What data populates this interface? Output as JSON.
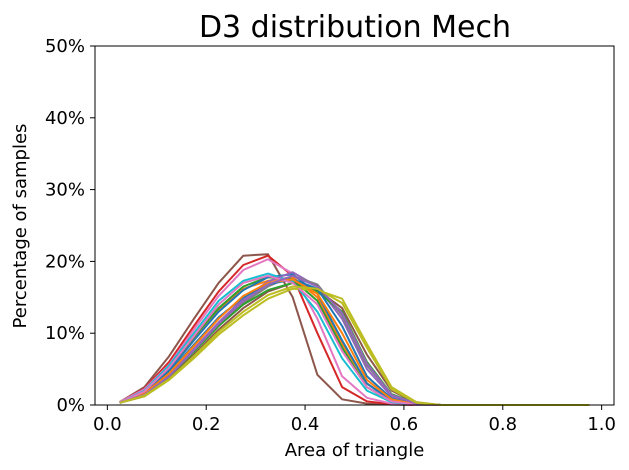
{
  "chart_data": {
    "type": "line",
    "title": "D3 distribution Mech",
    "xlabel": "Area of triangle",
    "ylabel": "Percentage of samples",
    "xlim": [
      -0.025,
      1.025
    ],
    "ylim": [
      0,
      50
    ],
    "xticks": [
      0.0,
      0.2,
      0.4,
      0.6,
      0.8,
      1.0
    ],
    "xtick_labels": [
      "0.0",
      "0.2",
      "0.4",
      "0.6",
      "0.8",
      "1.0"
    ],
    "yticks": [
      0,
      10,
      20,
      30,
      40,
      50
    ],
    "ytick_labels": [
      "0%",
      "10%",
      "20%",
      "30%",
      "40%",
      "50%"
    ],
    "grid": false,
    "x": [
      0.025,
      0.075,
      0.125,
      0.175,
      0.225,
      0.275,
      0.325,
      0.375,
      0.425,
      0.475,
      0.525,
      0.575,
      0.625,
      0.675,
      0.725,
      0.775,
      0.825,
      0.875,
      0.925,
      0.975
    ],
    "series": [
      {
        "color": "#8c564b",
        "values": [
          0.4,
          2.5,
          6.8,
          12.0,
          17.0,
          20.8,
          21.0,
          15.0,
          4.2,
          0.8,
          0.2,
          0.05,
          0,
          0,
          0,
          0,
          0,
          0,
          0,
          0
        ]
      },
      {
        "color": "#d62728",
        "values": [
          0.4,
          2.3,
          6.0,
          11.0,
          15.8,
          19.5,
          20.8,
          18.0,
          10.0,
          2.5,
          0.5,
          0.1,
          0,
          0,
          0,
          0,
          0,
          0,
          0,
          0
        ]
      },
      {
        "color": "#e377c2",
        "values": [
          0.4,
          2.2,
          5.6,
          10.5,
          15.2,
          18.8,
          20.3,
          18.3,
          12.0,
          4.0,
          1.0,
          0.2,
          0,
          0,
          0,
          0,
          0,
          0,
          0,
          0
        ]
      },
      {
        "color": "#ff7f0e",
        "values": [
          0.3,
          1.8,
          5.0,
          9.2,
          13.2,
          16.2,
          17.3,
          17.8,
          15.0,
          8.5,
          3.0,
          0.7,
          0.1,
          0,
          0,
          0,
          0,
          0,
          0,
          0
        ]
      },
      {
        "color": "#2ca02c",
        "values": [
          0.3,
          1.9,
          5.2,
          9.5,
          13.5,
          16.5,
          17.8,
          17.5,
          14.5,
          8.0,
          2.5,
          0.5,
          0.1,
          0,
          0,
          0,
          0,
          0,
          0,
          0
        ]
      },
      {
        "color": "#1f77b4",
        "values": [
          0.3,
          1.7,
          4.8,
          9.0,
          13.0,
          16.0,
          17.8,
          18.2,
          15.5,
          9.0,
          3.0,
          0.6,
          0.1,
          0,
          0,
          0,
          0,
          0,
          0,
          0
        ]
      },
      {
        "color": "#17becf",
        "values": [
          0.3,
          2.0,
          5.5,
          10.0,
          14.5,
          17.3,
          18.3,
          17.2,
          13.0,
          6.5,
          2.0,
          0.4,
          0.05,
          0,
          0,
          0,
          0,
          0,
          0,
          0
        ]
      },
      {
        "color": "#9467bd",
        "values": [
          0.3,
          1.5,
          4.2,
          7.8,
          11.5,
          14.8,
          17.2,
          18.5,
          16.5,
          12.0,
          5.0,
          1.2,
          0.2,
          0,
          0,
          0,
          0,
          0,
          0,
          0
        ]
      },
      {
        "color": "#7f7f7f",
        "values": [
          0.3,
          1.5,
          4.0,
          7.5,
          11.0,
          14.2,
          16.5,
          18.0,
          16.8,
          12.5,
          5.5,
          1.5,
          0.2,
          0,
          0,
          0,
          0,
          0,
          0,
          0
        ]
      },
      {
        "color": "#bcbd22",
        "values": [
          0.3,
          1.2,
          3.5,
          6.5,
          9.8,
          12.5,
          14.8,
          16.2,
          16.0,
          14.8,
          8.5,
          2.5,
          0.4,
          0,
          0,
          0,
          0,
          0,
          0,
          0
        ]
      },
      {
        "color": "#8c564b",
        "values": [
          0.3,
          1.3,
          3.8,
          7.0,
          10.5,
          13.5,
          15.8,
          17.0,
          16.0,
          13.5,
          7.0,
          2.0,
          0.3,
          0,
          0,
          0,
          0,
          0,
          0,
          0
        ]
      },
      {
        "color": "#2ca02c",
        "values": [
          0.3,
          1.4,
          4.0,
          7.4,
          11.0,
          14.0,
          16.0,
          17.0,
          15.8,
          13.0,
          6.0,
          1.5,
          0.2,
          0,
          0,
          0,
          0,
          0,
          0,
          0
        ]
      },
      {
        "color": "#1f77b4",
        "values": [
          0.3,
          1.6,
          4.5,
          8.4,
          12.2,
          15.0,
          16.8,
          17.5,
          16.2,
          11.0,
          4.0,
          0.9,
          0.1,
          0,
          0,
          0,
          0,
          0,
          0,
          0
        ]
      },
      {
        "color": "#ff7f0e",
        "values": [
          0.3,
          1.6,
          4.4,
          8.2,
          12.0,
          15.2,
          17.0,
          17.5,
          15.5,
          10.0,
          3.5,
          0.8,
          0.1,
          0,
          0,
          0,
          0,
          0,
          0,
          0
        ]
      },
      {
        "color": "#e377c2",
        "values": [
          0.3,
          1.9,
          5.2,
          9.6,
          14.0,
          17.0,
          18.0,
          17.0,
          14.0,
          7.5,
          2.5,
          0.5,
          0.05,
          0,
          0,
          0,
          0,
          0,
          0,
          0
        ]
      },
      {
        "color": "#9467bd",
        "values": [
          0.3,
          1.4,
          4.0,
          7.6,
          11.3,
          14.5,
          16.8,
          18.0,
          16.5,
          12.8,
          5.8,
          1.4,
          0.2,
          0,
          0,
          0,
          0,
          0,
          0,
          0
        ]
      },
      {
        "color": "#bcbd22",
        "values": [
          0.3,
          1.3,
          3.6,
          6.8,
          10.2,
          13.0,
          15.3,
          16.5,
          16.2,
          14.2,
          8.0,
          2.2,
          0.3,
          0,
          0,
          0,
          0,
          0,
          0,
          0
        ]
      }
    ]
  }
}
